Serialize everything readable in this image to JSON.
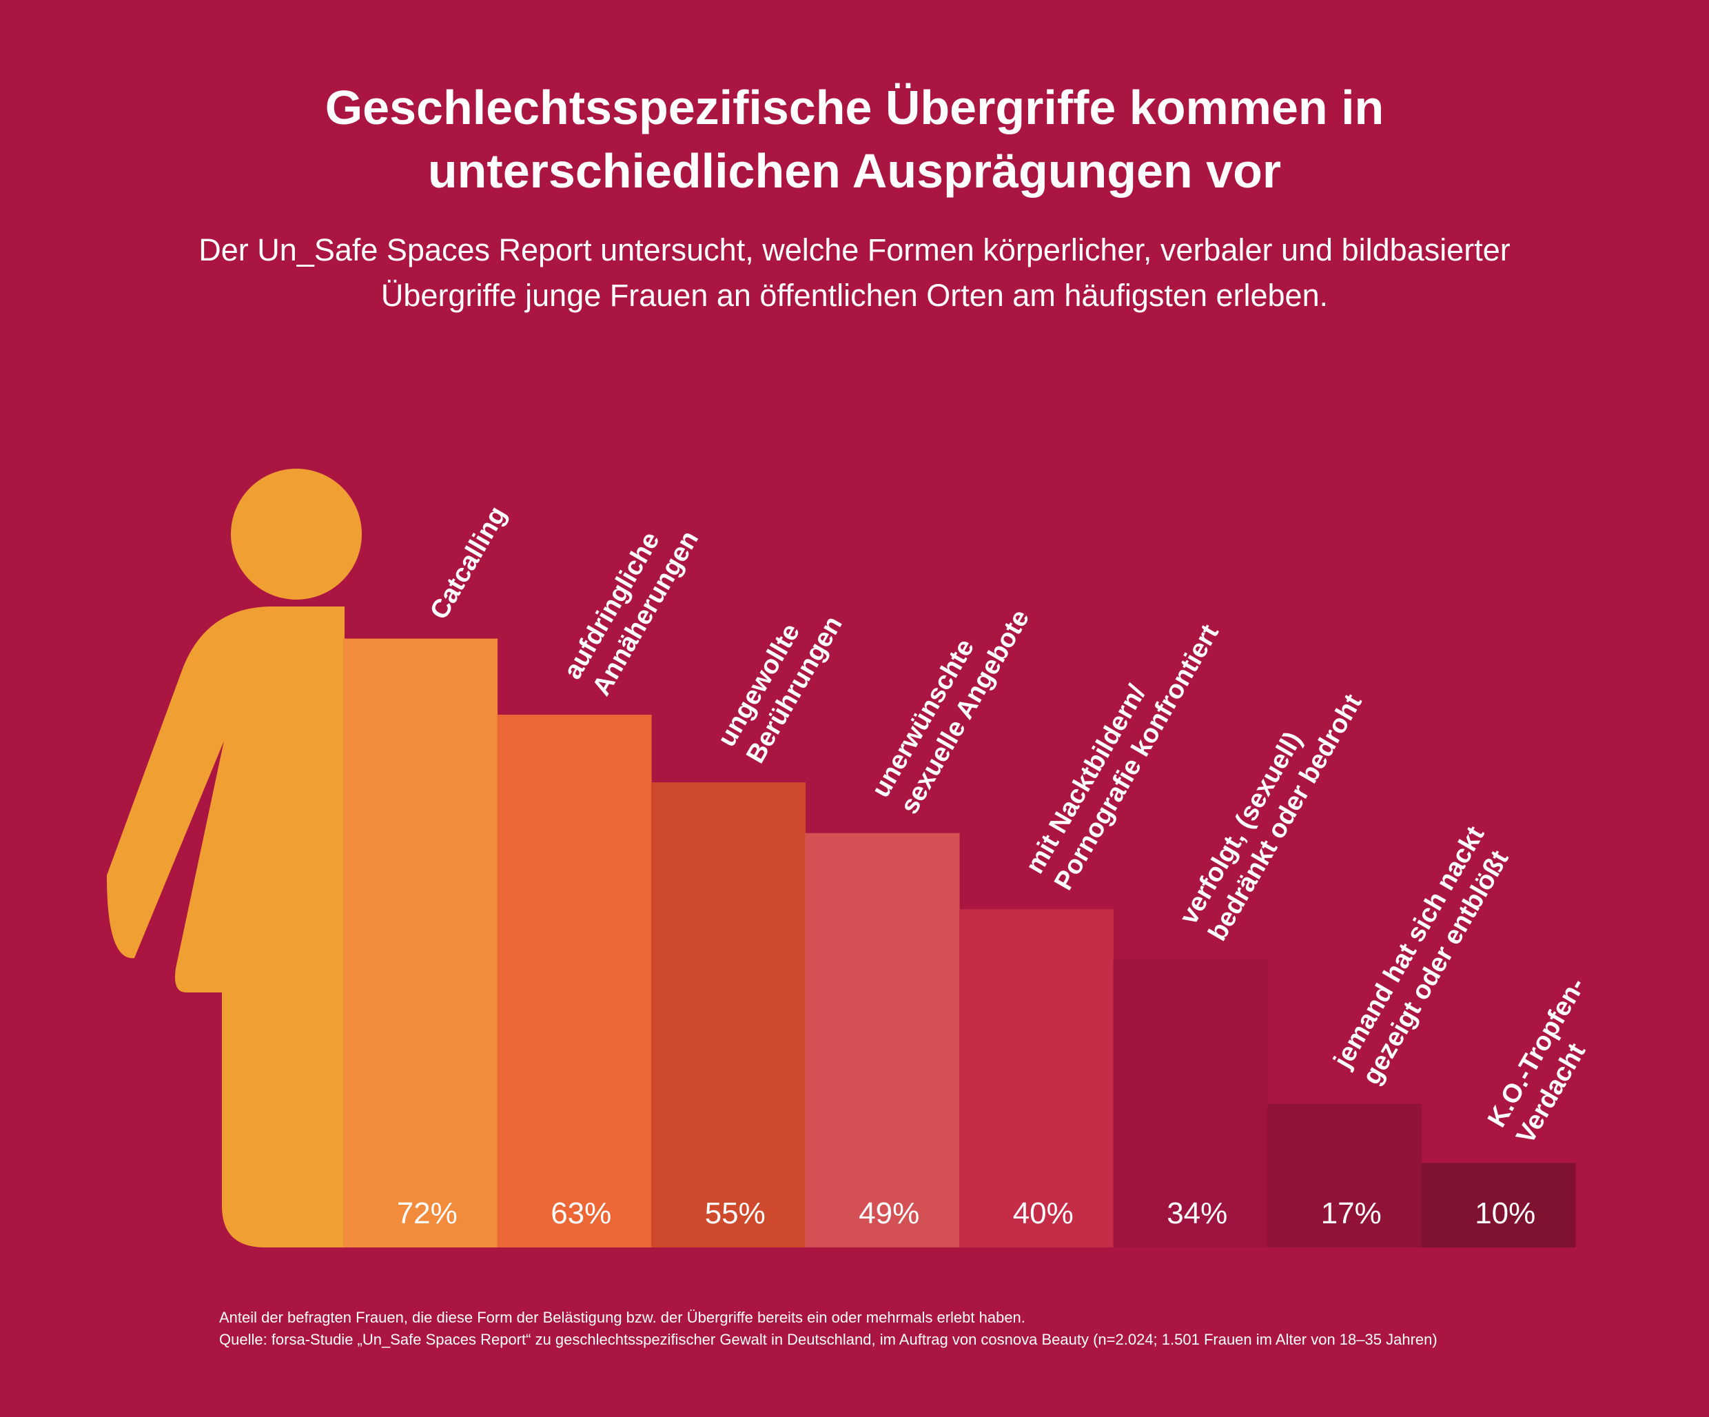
{
  "title_line1": "Geschlechtsspezifische Übergriffe kommen in",
  "title_line2": "unterschiedlichen Ausprägungen vor",
  "subtitle_line1": "Der Un_Safe Spaces Report untersucht, welche Formen körperlicher, verbaler und bildbasierter",
  "subtitle_line2": "Übergriffe junge Frauen an öffentlichen Orten am häufigsten erleben.",
  "footnote_line1": "Anteil der befragten Frauen, die diese Form der Belästigung bzw. der Übergriffe bereits ein oder mehrmals erlebt haben.",
  "footnote_line2": "Quelle: forsa-Studie „Un_Safe Spaces Report“ zu geschlechtsspezifischer Gewalt in Deutschland, im Auftrag von cosnova Beauty (n=2.024; 1.501 Frauen im Alter von 18–35 Jahren)",
  "chart_data": {
    "type": "bar",
    "unit": "%",
    "categories": [
      [
        "Catcalling"
      ],
      [
        "aufdringliche",
        "Annäherungen"
      ],
      [
        "ungewollte",
        "Berührungen"
      ],
      [
        "unerwünschte",
        "sexuelle Angebote"
      ],
      [
        "mit  Nacktbildern/",
        "Pornografie konfrontiert"
      ],
      [
        "verfolgt,  (sexuell)",
        "bedränkt oder bedroht"
      ],
      [
        "jemand hat sich nackt",
        "gezeigt oder entblößt"
      ],
      [
        "K.O.-Tropfen-",
        "Verdacht"
      ]
    ],
    "values": [
      72,
      63,
      55,
      49,
      40,
      34,
      17,
      10
    ],
    "value_labels": [
      "72%",
      "63%",
      "55%",
      "49%",
      "40%",
      "34%",
      "17%",
      "10%"
    ],
    "colors": [
      "#f28b3b",
      "#ec6735",
      "#cf4a2c",
      "#d35155",
      "#c52c47",
      "#9f143f",
      "#911338",
      "#7f1231"
    ],
    "figure_color": "#f0a033",
    "ylim": [
      0,
      100
    ],
    "xlabel": "",
    "ylabel": ""
  }
}
